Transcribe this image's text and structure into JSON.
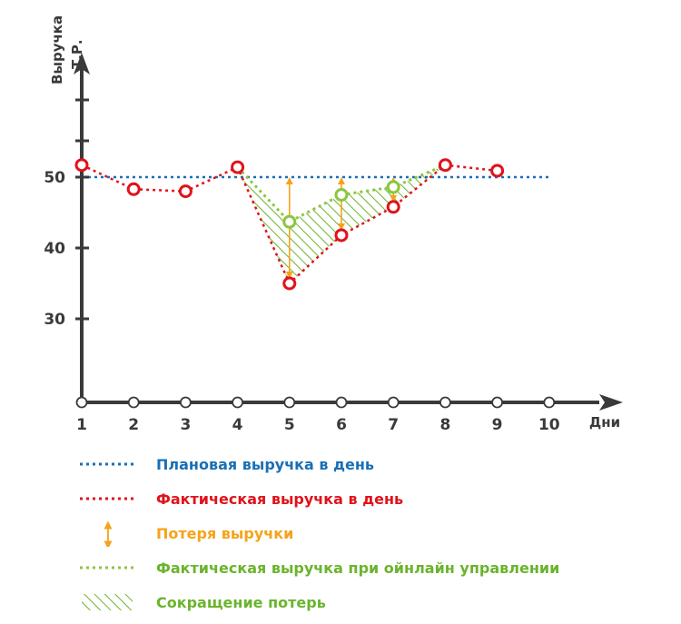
{
  "colors": {
    "axis": "#3a3a3a",
    "planned": "#1a6fb5",
    "actual": "#e0131b",
    "loss": "#f5a31a",
    "online": "#8cc63f",
    "reduction": "#6ab42d"
  },
  "chart_data": {
    "type": "line",
    "ylabel": "Выручка",
    "ylabel_unit": "Т.Р.",
    "xlabel": "Дни",
    "x_ticks": [
      "1",
      "2",
      "3",
      "4",
      "5",
      "6",
      "7",
      "8",
      "9",
      "10"
    ],
    "y_ticks": [
      "30",
      "40",
      "50"
    ],
    "ylim": [
      19,
      66
    ],
    "xlim": [
      1,
      11.1
    ],
    "grid": false,
    "legend_placement": "bottom",
    "series": [
      {
        "name": "Плановая выручка в день",
        "style": "dotted",
        "x": [
          1,
          10.0
        ],
        "values": [
          50,
          50
        ]
      },
      {
        "name": "Фактическая выручка в день",
        "style": "dotted-with-circle-markers",
        "x": [
          1,
          2,
          3,
          4,
          5,
          6,
          7,
          8,
          9
        ],
        "values": [
          51.7,
          48.3,
          48.0,
          51.4,
          35.0,
          41.8,
          45.8,
          51.7,
          50.9
        ]
      },
      {
        "name": "Фактическая выручка при ойнлайн управлении",
        "style": "dotted-with-circle-markers",
        "x": [
          4,
          5,
          6,
          7,
          8
        ],
        "values": [
          51.4,
          43.7,
          47.5,
          48.6,
          51.7
        ],
        "markers_at": [
          5,
          6,
          7
        ]
      }
    ],
    "loss_arrows": [
      {
        "x": 5,
        "from": 35.0,
        "to": 50
      },
      {
        "x": 6,
        "from": 41.8,
        "to": 50
      },
      {
        "x": 7,
        "from": 45.8,
        "to": 50
      }
    ],
    "legend": [
      "Плановая выручка в день",
      "Фактическая выручка в день",
      "Потеря выручки",
      "Фактическая выручка при ойнлайн управлении",
      "Сокращение потерь"
    ]
  }
}
